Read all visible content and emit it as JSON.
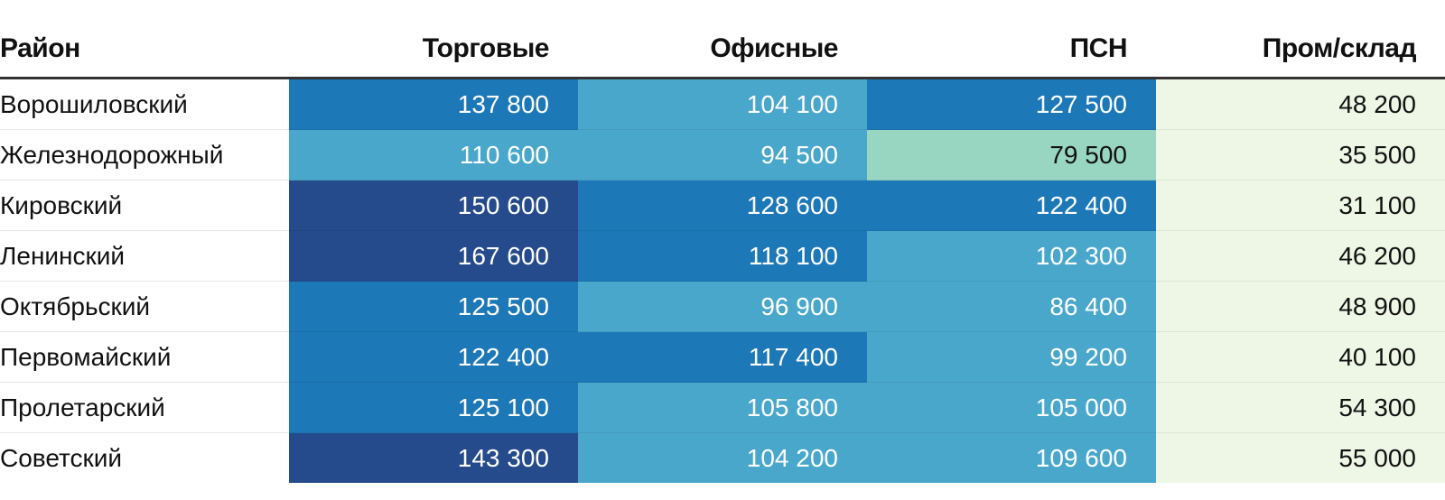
{
  "chart_data": {
    "type": "table",
    "columns": [
      "Район",
      "Торговые",
      "Офисные",
      "ПСН",
      "Пром/склад"
    ],
    "rows": [
      {
        "district": "Ворошиловский",
        "values": [
          "137 800",
          "104 100",
          "127 500",
          "48 200"
        ]
      },
      {
        "district": "Железнодорожный",
        "values": [
          "110 600",
          "94 500",
          "79 500",
          "35 500"
        ]
      },
      {
        "district": "Кировский",
        "values": [
          "150 600",
          "128 600",
          "122 400",
          "31 100"
        ]
      },
      {
        "district": "Ленинский",
        "values": [
          "167 600",
          "118 100",
          "102 300",
          "46 200"
        ]
      },
      {
        "district": "Октябрьский",
        "values": [
          "125 500",
          "96 900",
          "86 400",
          "48 900"
        ]
      },
      {
        "district": "Первомайский",
        "values": [
          "122 400",
          "117 400",
          "99 200",
          "40 100"
        ]
      },
      {
        "district": "Пролетарский",
        "values": [
          "125 100",
          "105 800",
          "105 000",
          "54 300"
        ]
      },
      {
        "district": "Советский",
        "values": [
          "143 300",
          "104 200",
          "109 600",
          "55 000"
        ]
      }
    ],
    "color_scale": {
      "steps": [
        {
          "min": 140000,
          "color": "#254b8c",
          "text": "#ffffff"
        },
        {
          "min": 115000,
          "color": "#1d78b8",
          "text": "#ffffff"
        },
        {
          "min": 80000,
          "color": "#4aa7cc",
          "text": "#ffffff"
        },
        {
          "min": 60000,
          "color": "#98d6c2",
          "text": "#111111"
        },
        {
          "min": 0,
          "color": "#eef7e6",
          "text": "#111111"
        }
      ]
    }
  }
}
